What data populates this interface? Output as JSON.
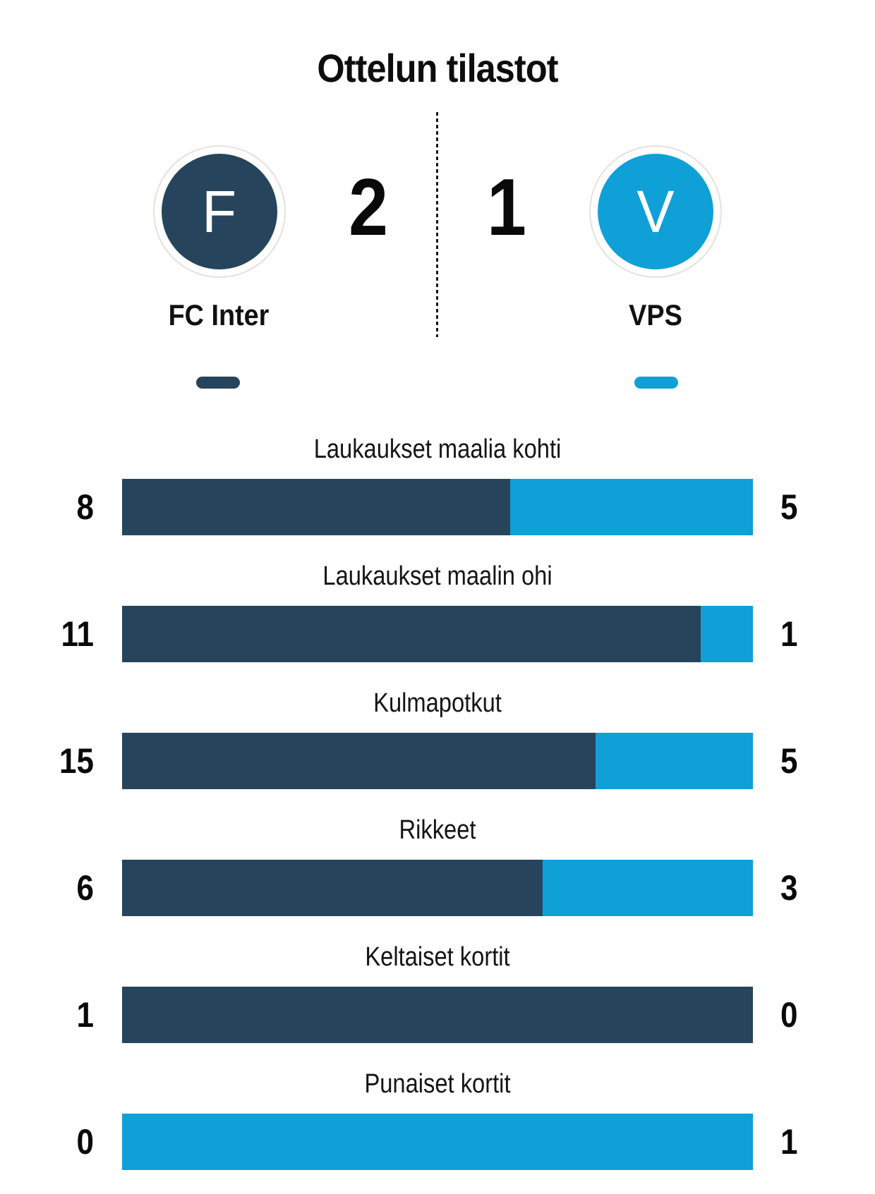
{
  "title": "Ottelun tilastot",
  "colors": {
    "home": "#26455C",
    "away": "#0FA0D8",
    "divider": "#161616",
    "badge_ring": "#E6E1DB",
    "text": "#111111"
  },
  "match": {
    "home": {
      "initial": "F",
      "name": "FC Inter",
      "score": "2"
    },
    "away": {
      "initial": "V",
      "name": "VPS",
      "score": "1"
    }
  },
  "stats": [
    {
      "label": "Laukaukset maalia kohti",
      "home": 8,
      "away": 5
    },
    {
      "label": "Laukaukset maalin ohi",
      "home": 11,
      "away": 1
    },
    {
      "label": "Kulmapotkut",
      "home": 15,
      "away": 5
    },
    {
      "label": "Rikkeet",
      "home": 6,
      "away": 3
    },
    {
      "label": "Keltaiset kortit",
      "home": 1,
      "away": 0
    },
    {
      "label": "Punaiset kortit",
      "home": 0,
      "away": 1
    }
  ],
  "chart_data": {
    "type": "bar",
    "title": "Ottelun tilastot",
    "subtitle": "FC Inter 2 - 1 VPS",
    "orientation": "horizontal-paired-stacked",
    "categories": [
      "Laukaukset maalia kohti",
      "Laukaukset maalin ohi",
      "Kulmapotkut",
      "Rikkeet",
      "Keltaiset kortit",
      "Punaiset kortit"
    ],
    "series": [
      {
        "name": "FC Inter",
        "color": "#26455C",
        "values": [
          8,
          11,
          15,
          6,
          1,
          0
        ]
      },
      {
        "name": "VPS",
        "color": "#0FA0D8",
        "values": [
          5,
          1,
          5,
          3,
          0,
          1
        ]
      }
    ],
    "value_labels": "shown at both bar ends",
    "legend_position": "team badges with color pills above bars",
    "grid": false
  }
}
